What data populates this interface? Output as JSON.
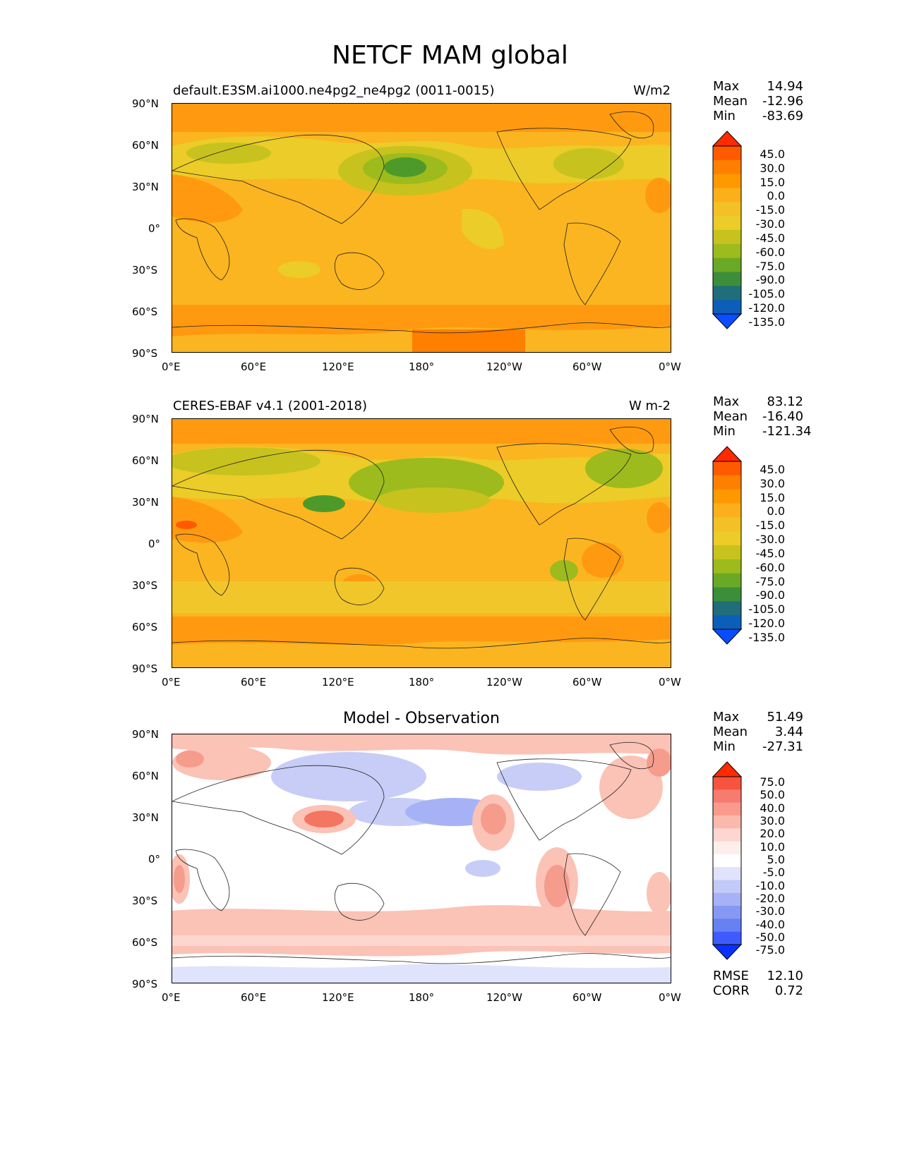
{
  "title": "NETCF MAM global",
  "x_ticks": [
    "0°E",
    "60°E",
    "120°E",
    "180°",
    "120°W",
    "60°W",
    "0°W"
  ],
  "y_ticks": [
    "90°N",
    "60°N",
    "30°N",
    "0°",
    "30°S",
    "60°S",
    "90°S"
  ],
  "panels": [
    {
      "left_title": "default.E3SM.ai1000.ne4pg2_ne4pg2 (0011-0015)",
      "units": "W/m2",
      "stats": [
        {
          "label": "Max",
          "value": "14.94"
        },
        {
          "label": "Mean",
          "value": "-12.96"
        },
        {
          "label": "Min",
          "value": "-83.69"
        }
      ],
      "colorbar_levels": [
        "45.0",
        "30.0",
        "15.0",
        "0.0",
        "-15.0",
        "-30.0",
        "-45.0",
        "-60.0",
        "-75.0",
        "-90.0",
        "-105.0",
        "-120.0",
        "-135.0"
      ],
      "colorbar_colors": [
        "#ff2a00",
        "#ff5a00",
        "#ff7f00",
        "#ff9900",
        "#fbaf1a",
        "#f3c027",
        "#ebcc28",
        "#c8c21e",
        "#9dbb1c",
        "#6aa925",
        "#3d8e3a",
        "#1f6e7a",
        "#0b5fb8",
        "#0a4cff"
      ]
    },
    {
      "left_title": "CERES-EBAF v4.1 (2001-2018)",
      "units": "W m-2",
      "stats": [
        {
          "label": "Max",
          "value": "83.12"
        },
        {
          "label": "Mean",
          "value": "-16.40"
        },
        {
          "label": "Min",
          "value": "-121.34"
        }
      ],
      "colorbar_levels": [
        "45.0",
        "30.0",
        "15.0",
        "0.0",
        "-15.0",
        "-30.0",
        "-45.0",
        "-60.0",
        "-75.0",
        "-90.0",
        "-105.0",
        "-120.0",
        "-135.0"
      ],
      "colorbar_colors": [
        "#ff2a00",
        "#ff5a00",
        "#ff7f00",
        "#ff9900",
        "#fbaf1a",
        "#f3c027",
        "#ebcc28",
        "#c8c21e",
        "#9dbb1c",
        "#6aa925",
        "#3d8e3a",
        "#1f6e7a",
        "#0b5fb8",
        "#0a4cff"
      ]
    },
    {
      "center_title": "Model - Observation",
      "stats": [
        {
          "label": "Max",
          "value": "51.49"
        },
        {
          "label": "Mean",
          "value": "3.44"
        },
        {
          "label": "Min",
          "value": "-27.31"
        }
      ],
      "colorbar_levels": [
        "75.0",
        "50.0",
        "40.0",
        "30.0",
        "20.0",
        "10.0",
        "5.0",
        "-5.0",
        "-10.0",
        "-20.0",
        "-30.0",
        "-40.0",
        "-50.0",
        "-75.0"
      ],
      "colorbar_colors": [
        "#ff2a00",
        "#f6543f",
        "#f77b6e",
        "#fa9a8c",
        "#fbb9ae",
        "#fcd6cf",
        "#feeeea",
        "#ffffff",
        "#dfe3fb",
        "#c3caf7",
        "#a6b2f5",
        "#8598f3",
        "#6780f2",
        "#3e5bff",
        "#0a32ff"
      ],
      "error_stats": [
        {
          "label": "RMSE",
          "value": "12.10"
        },
        {
          "label": "CORR",
          "value": "0.72"
        }
      ]
    }
  ],
  "colors": {
    "base_yellow": "#fbb520",
    "light_yellow": "#f1c62a",
    "deep_orange": "#ff9a10",
    "green": "#9dbb1c",
    "dark_green": "#4d9a2a",
    "diff_pink": "#fbc2b6",
    "diff_red": "#f47561",
    "diff_blue": "#c7cdf6"
  }
}
